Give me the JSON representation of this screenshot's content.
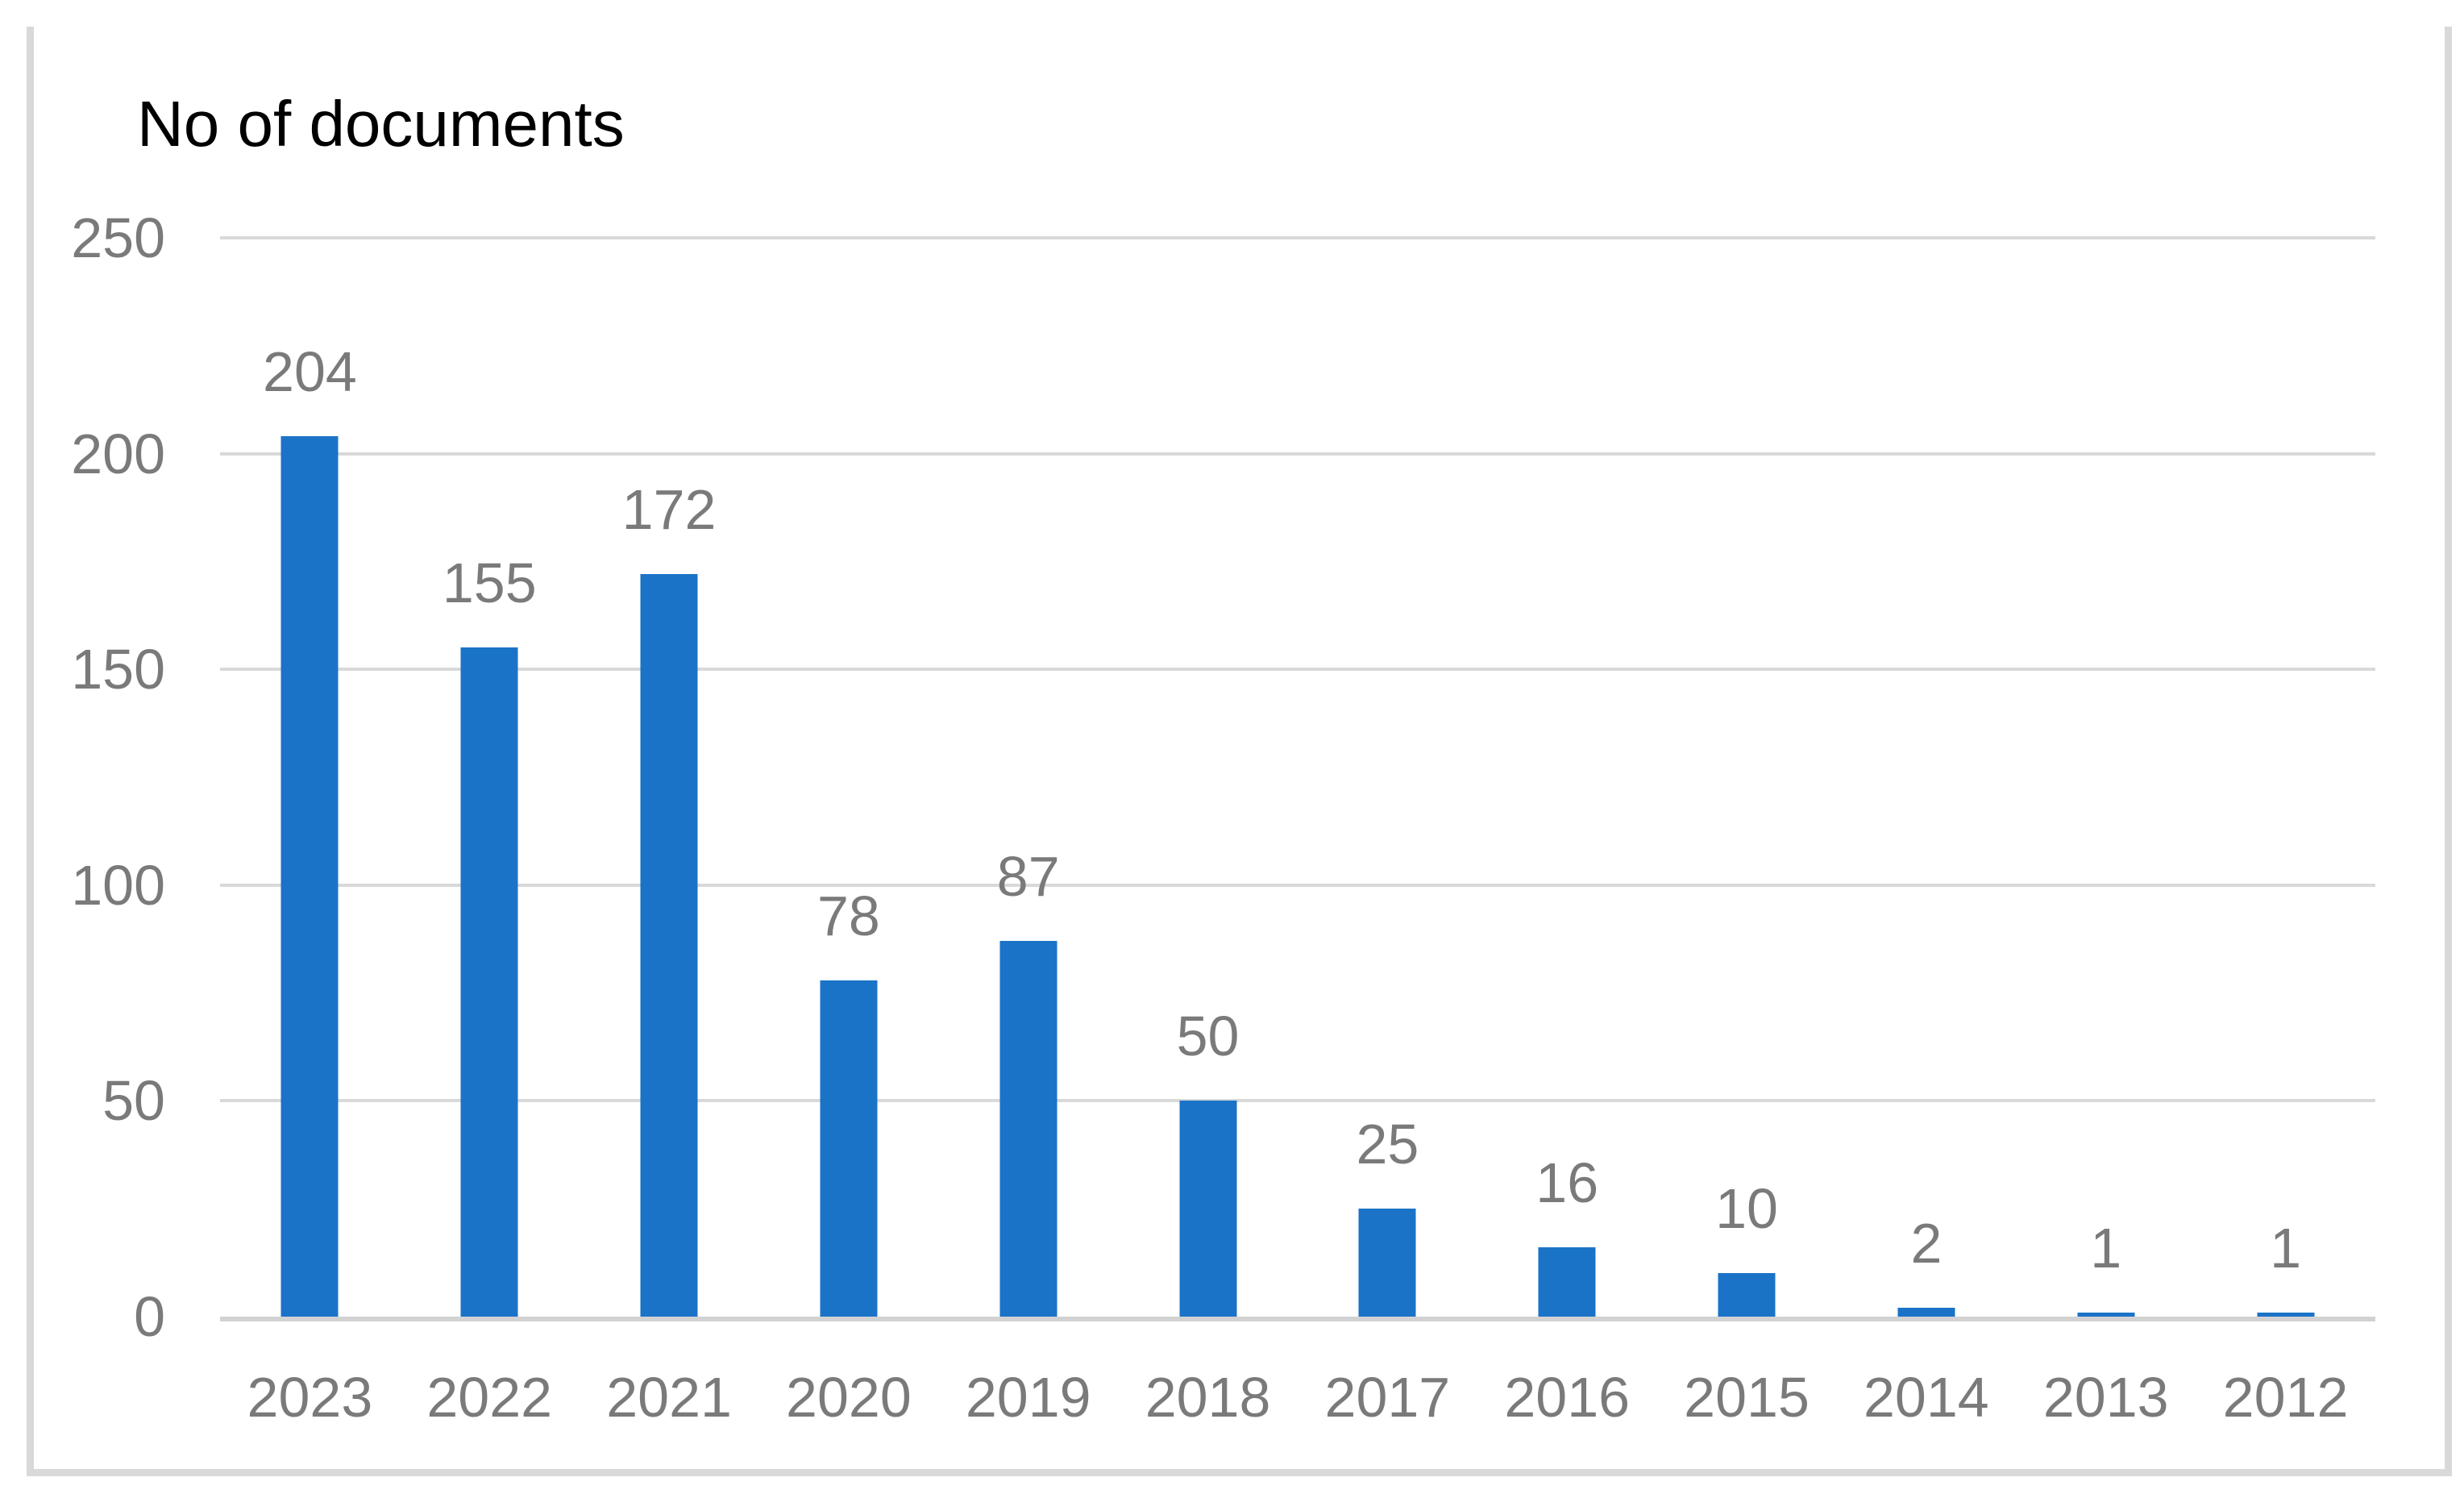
{
  "chart_data": {
    "type": "bar",
    "title": "No of documents",
    "categories": [
      "2023",
      "2022",
      "2021",
      "2020",
      "2019",
      "2018",
      "2017",
      "2016",
      "2015",
      "2014",
      "2013",
      "2012"
    ],
    "values": [
      204,
      155,
      172,
      78,
      87,
      50,
      25,
      16,
      10,
      2,
      1,
      1
    ],
    "xlabel": "",
    "ylabel": "",
    "ylim": [
      0,
      250
    ],
    "y_ticks": [
      0,
      50,
      100,
      150,
      200,
      250
    ],
    "grid": "horizontal",
    "legend": "none",
    "data_labels": true,
    "colors": {
      "bar": "#1b73c8",
      "labels": "#7a7a7a",
      "gridline": "#d9d9d9",
      "axis_line": "#d2d2d2",
      "frame": "#d9d9d9",
      "title": "#000000"
    }
  }
}
